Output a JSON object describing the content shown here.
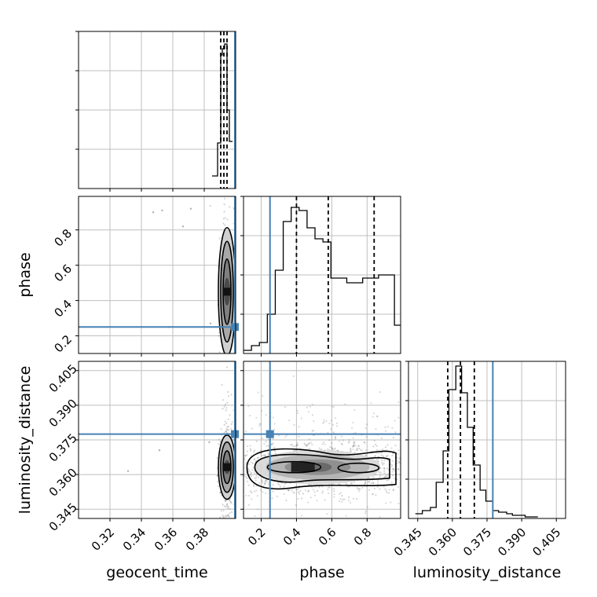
{
  "chart_data": {
    "type": "corner",
    "parameters": [
      "geocent_time",
      "phase",
      "luminosity_distance"
    ],
    "truths": {
      "geocent_time": 0.3995,
      "phase": 0.25,
      "luminosity_distance": 0.3775
    },
    "ranges": {
      "geocent_time": [
        0.3,
        0.4
      ],
      "phase": [
        0.1,
        0.99
      ],
      "luminosity_distance": [
        0.341,
        0.409
      ]
    },
    "ticks": {
      "geocent_time": {
        "values": [
          0.32,
          0.34,
          0.36,
          0.38
        ],
        "labels": [
          "0.32",
          "0.34",
          "0.36",
          "0.38"
        ]
      },
      "phase": {
        "values": [
          0.2,
          0.4,
          0.6,
          0.8
        ],
        "labels": [
          "0.2",
          "0.4",
          "0.6",
          "0.8"
        ]
      },
      "luminosity_distance": {
        "values": [
          0.345,
          0.36,
          0.375,
          0.39,
          0.405
        ],
        "labels": [
          "0.345",
          "0.360",
          "0.375",
          "0.390",
          "0.405"
        ]
      }
    },
    "quantiles": {
      "geocent_time": [
        0.3905,
        0.3925,
        0.3945
      ],
      "phase": [
        0.4,
        0.58,
        0.84
      ],
      "luminosity_distance": [
        0.358,
        0.3635,
        0.3695
      ]
    },
    "hist_geocent_time": {
      "bin_edges": [
        0.385,
        0.3885,
        0.3905,
        0.3915,
        0.393,
        0.3945,
        0.396,
        0.398
      ],
      "counts": [
        0.08,
        0.29,
        0.85,
        0.89,
        0.92,
        0.5,
        0.3
      ]
    },
    "hist_phase": {
      "bin_edges": [
        0.1,
        0.145,
        0.19,
        0.235,
        0.28,
        0.325,
        0.37,
        0.415,
        0.46,
        0.505,
        0.55,
        0.595,
        0.64,
        0.685,
        0.73,
        0.775,
        0.82,
        0.865,
        0.91,
        0.955,
        0.99
      ],
      "counts": [
        0.02,
        0.05,
        0.07,
        0.25,
        0.53,
        0.84,
        0.93,
        0.91,
        0.8,
        0.73,
        0.71,
        0.48,
        0.48,
        0.45,
        0.45,
        0.48,
        0.48,
        0.5,
        0.5,
        0.18
      ]
    },
    "hist_luminosity_distance": {
      "bin_edges": [
        0.344,
        0.347,
        0.3505,
        0.353,
        0.356,
        0.3585,
        0.3615,
        0.364,
        0.3665,
        0.369,
        0.372,
        0.3745,
        0.3775,
        0.38,
        0.3835,
        0.386,
        0.389,
        0.3915,
        0.397
      ],
      "counts": [
        0.03,
        0.05,
        0.07,
        0.23,
        0.43,
        0.82,
        0.97,
        0.8,
        0.58,
        0.34,
        0.18,
        0.11,
        0.05,
        0.04,
        0.03,
        0.02,
        0.02,
        0.01
      ]
    },
    "scatter_geocent_phase": {
      "center": [
        0.3945,
        0.45
      ],
      "points": [
        [
          0.3475,
          0.9
        ],
        [
          0.3532,
          0.91
        ],
        [
          0.3715,
          0.92
        ],
        [
          0.3665,
          0.82
        ],
        [
          0.384,
          0.27
        ],
        [
          0.3885,
          0.25
        ],
        [
          0.3575,
          0.25
        ]
      ]
    },
    "scatter_geocent_lum": {
      "center": [
        0.3945,
        0.3632
      ],
      "points": [
        [
          0.3315,
          0.3615
        ],
        [
          0.3515,
          0.3705
        ],
        [
          0.3832,
          0.374
        ],
        [
          0.3885,
          0.3595
        ]
      ]
    },
    "scatter_phase_lum": {
      "center": [
        0.52,
        0.3632
      ]
    },
    "axis_labels": {
      "x": [
        "geocent_time",
        "phase",
        "luminosity_distance"
      ],
      "y": [
        "phase",
        "luminosity_distance"
      ]
    },
    "grid": true,
    "colors": {
      "truth": "#4682b4",
      "hist": "#000000",
      "grid": "#bfbfbf",
      "scatter": "#555555"
    }
  }
}
